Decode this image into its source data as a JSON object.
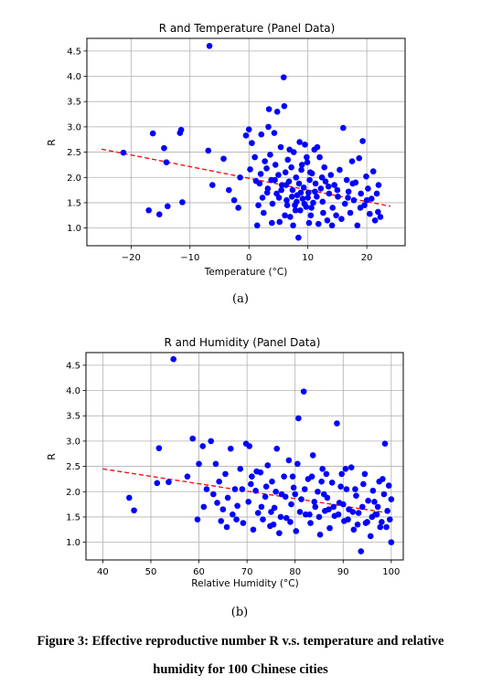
{
  "chart_data": [
    {
      "type": "scatter",
      "title": "R and Temperature (Panel Data)",
      "xlabel": "Temperature (°C)",
      "ylabel": "R",
      "xlim": [
        -27.5,
        26.5
      ],
      "ylim": [
        0.65,
        4.75
      ],
      "xticks": [
        -20,
        -10,
        0,
        10,
        20
      ],
      "yticks": [
        1.0,
        1.5,
        2.0,
        2.5,
        3.0,
        3.5,
        4.0,
        4.5
      ],
      "grid": true,
      "point_color": "#0000ff",
      "trend_color": "#ff0000",
      "trend": {
        "x": [
          -25,
          24
        ],
        "y": [
          2.56,
          1.43
        ]
      },
      "points": [
        [
          -21.3,
          2.49
        ],
        [
          -17.0,
          1.35
        ],
        [
          -16.3,
          2.87
        ],
        [
          -15.2,
          1.27
        ],
        [
          -14.4,
          2.58
        ],
        [
          -14.0,
          2.3
        ],
        [
          -13.8,
          1.43
        ],
        [
          -11.5,
          2.94
        ],
        [
          -11.3,
          1.51
        ],
        [
          -11.7,
          2.88
        ],
        [
          -6.7,
          4.6
        ],
        [
          -6.9,
          2.53
        ],
        [
          -6.2,
          1.85
        ],
        [
          -4.3,
          2.37
        ],
        [
          -3.4,
          1.75
        ],
        [
          -2.5,
          1.55
        ],
        [
          -1.8,
          1.4
        ],
        [
          -1.5,
          2.0
        ],
        [
          -0.5,
          2.83
        ],
        [
          0.0,
          2.95
        ],
        [
          0.2,
          2.16
        ],
        [
          0.5,
          2.68
        ],
        [
          1.0,
          2.4
        ],
        [
          1.2,
          1.93
        ],
        [
          1.6,
          1.45
        ],
        [
          1.8,
          1.88
        ],
        [
          2.0,
          2.07
        ],
        [
          2.3,
          1.6
        ],
        [
          2.5,
          1.3
        ],
        [
          2.7,
          2.32
        ],
        [
          3.0,
          2.18
        ],
        [
          3.2,
          1.78
        ],
        [
          3.4,
          3.35
        ],
        [
          3.6,
          2.45
        ],
        [
          3.8,
          1.95
        ],
        [
          4.0,
          1.48
        ],
        [
          4.3,
          2.88
        ],
        [
          4.5,
          2.25
        ],
        [
          4.7,
          1.68
        ],
        [
          5.0,
          2.05
        ],
        [
          5.2,
          1.12
        ],
        [
          5.4,
          2.6
        ],
        [
          5.6,
          1.85
        ],
        [
          5.9,
          3.98
        ],
        [
          6.0,
          3.41
        ],
        [
          6.2,
          2.1
        ],
        [
          6.4,
          1.55
        ],
        [
          6.6,
          2.35
        ],
        [
          6.8,
          1.92
        ],
        [
          7.0,
          1.22
        ],
        [
          7.2,
          2.2
        ],
        [
          7.4,
          1.75
        ],
        [
          7.6,
          2.5
        ],
        [
          7.8,
          1.45
        ],
        [
          8.0,
          2.0
        ],
        [
          8.2,
          1.65
        ],
        [
          8.4,
          0.81
        ],
        [
          8.5,
          1.88
        ],
        [
          8.7,
          1.35
        ],
        [
          8.9,
          2.15
        ],
        [
          9.1,
          1.58
        ],
        [
          9.3,
          1.8
        ],
        [
          9.5,
          2.65
        ],
        [
          9.7,
          1.42
        ],
        [
          9.9,
          2.3
        ],
        [
          10.1,
          1.7
        ],
        [
          10.3,
          1.95
        ],
        [
          10.5,
          1.25
        ],
        [
          10.7,
          2.08
        ],
        [
          10.9,
          1.5
        ],
        [
          11.1,
          2.55
        ],
        [
          11.3,
          1.88
        ],
        [
          11.5,
          1.62
        ],
        [
          11.8,
          1.08
        ],
        [
          12.0,
          2.4
        ],
        [
          12.2,
          1.78
        ],
        [
          12.5,
          1.52
        ],
        [
          12.8,
          2.2
        ],
        [
          13.0,
          1.92
        ],
        [
          13.3,
          1.15
        ],
        [
          13.6,
          1.68
        ],
        [
          13.9,
          2.05
        ],
        [
          14.2,
          1.4
        ],
        [
          14.5,
          1.85
        ],
        [
          14.8,
          1.25
        ],
        [
          15.1,
          1.62
        ],
        [
          15.4,
          2.15
        ],
        [
          15.7,
          1.18
        ],
        [
          16.0,
          2.98
        ],
        [
          16.3,
          1.48
        ],
        [
          16.6,
          1.95
        ],
        [
          16.9,
          1.72
        ],
        [
          17.2,
          1.3
        ],
        [
          17.5,
          2.32
        ],
        [
          17.8,
          1.55
        ],
        [
          18.1,
          1.9
        ],
        [
          18.4,
          1.05
        ],
        [
          18.7,
          2.38
        ],
        [
          19.0,
          1.68
        ],
        [
          19.3,
          2.72
        ],
        [
          19.6,
          1.45
        ],
        [
          19.9,
          2.02
        ],
        [
          20.2,
          1.78
        ],
        [
          20.5,
          1.28
        ],
        [
          20.8,
          1.58
        ],
        [
          21.1,
          2.12
        ],
        [
          21.4,
          1.15
        ],
        [
          21.7,
          1.68
        ],
        [
          22.0,
          1.85
        ],
        [
          22.3,
          1.22
        ],
        [
          2.1,
          2.85
        ],
        [
          3.3,
          3.0
        ],
        [
          4.8,
          3.3
        ],
        [
          6.9,
          2.55
        ],
        [
          8.6,
          2.7
        ],
        [
          9.8,
          2.4
        ],
        [
          11.6,
          2.6
        ],
        [
          1.4,
          1.05
        ],
        [
          3.9,
          1.1
        ],
        [
          6.1,
          1.25
        ],
        [
          7.5,
          1.05
        ],
        [
          10.2,
          1.1
        ],
        [
          12.6,
          1.3
        ],
        [
          14.1,
          1.05
        ],
        [
          5.5,
          1.75
        ],
        [
          6.5,
          1.45
        ],
        [
          7.3,
          1.62
        ],
        [
          8.1,
          1.52
        ],
        [
          8.8,
          1.7
        ],
        [
          9.4,
          1.48
        ],
        [
          10.0,
          1.6
        ],
        [
          10.6,
          1.4
        ],
        [
          11.2,
          1.72
        ],
        [
          7.9,
          1.35
        ],
        [
          6.3,
          1.85
        ],
        [
          5.1,
          1.6
        ],
        [
          4.4,
          1.95
        ],
        [
          3.1,
          1.7
        ],
        [
          9.0,
          2.25
        ],
        [
          10.4,
          2.1
        ],
        [
          12.4,
          2.0
        ],
        [
          13.5,
          1.82
        ],
        [
          15.0,
          1.75
        ],
        [
          16.8,
          1.6
        ],
        [
          17.6,
          1.88
        ],
        [
          18.9,
          1.4
        ],
        [
          20.0,
          1.55
        ],
        [
          21.9,
          1.32
        ]
      ]
    },
    {
      "type": "scatter",
      "title": "R and Humidity (Panel Data)",
      "xlabel": "Relative Humidity (°C)",
      "ylabel": "R",
      "xlim": [
        36.5,
        102.5
      ],
      "ylim": [
        0.65,
        4.75
      ],
      "xticks": [
        40,
        50,
        60,
        70,
        80,
        90,
        100
      ],
      "yticks": [
        1.0,
        1.5,
        2.0,
        2.5,
        3.0,
        3.5,
        4.0,
        4.5
      ],
      "grid": true,
      "point_color": "#0000ff",
      "trend_color": "#ff0000",
      "trend": {
        "x": [
          40,
          100
        ],
        "y": [
          2.45,
          1.57
        ]
      },
      "points": [
        [
          45.5,
          1.88
        ],
        [
          46.5,
          1.63
        ],
        [
          51.3,
          2.17
        ],
        [
          51.7,
          2.86
        ],
        [
          53.7,
          2.19
        ],
        [
          54.7,
          4.62
        ],
        [
          57.6,
          2.3
        ],
        [
          58.7,
          3.05
        ],
        [
          59.7,
          1.45
        ],
        [
          60.0,
          2.55
        ],
        [
          60.8,
          2.9
        ],
        [
          61.6,
          2.05
        ],
        [
          62.5,
          3.0
        ],
        [
          63.0,
          1.95
        ],
        [
          63.8,
          1.78
        ],
        [
          64.2,
          2.2
        ],
        [
          64.6,
          1.42
        ],
        [
          65.0,
          1.65
        ],
        [
          65.5,
          2.35
        ],
        [
          66.0,
          1.88
        ],
        [
          66.6,
          2.85
        ],
        [
          67.0,
          1.55
        ],
        [
          67.5,
          2.05
        ],
        [
          68.0,
          1.72
        ],
        [
          68.6,
          2.45
        ],
        [
          69.2,
          1.38
        ],
        [
          69.8,
          2.95
        ],
        [
          70.3,
          1.8
        ],
        [
          70.8,
          2.15
        ],
        [
          71.3,
          1.25
        ],
        [
          71.8,
          2.02
        ],
        [
          72.3,
          1.58
        ],
        [
          72.8,
          2.38
        ],
        [
          73.3,
          1.45
        ],
        [
          73.8,
          1.9
        ],
        [
          74.3,
          2.52
        ],
        [
          74.8,
          1.32
        ],
        [
          75.2,
          2.2
        ],
        [
          75.7,
          1.68
        ],
        [
          76.2,
          2.85
        ],
        [
          76.7,
          1.18
        ],
        [
          77.2,
          1.95
        ],
        [
          77.7,
          2.3
        ],
        [
          78.2,
          1.48
        ],
        [
          78.7,
          2.62
        ],
        [
          79.2,
          1.75
        ],
        [
          79.7,
          2.08
        ],
        [
          80.2,
          1.22
        ],
        [
          80.7,
          3.45
        ],
        [
          81.3,
          1.85
        ],
        [
          81.8,
          3.98
        ],
        [
          82.2,
          1.55
        ],
        [
          82.7,
          2.25
        ],
        [
          83.2,
          1.38
        ],
        [
          83.7,
          2.72
        ],
        [
          84.2,
          1.7
        ],
        [
          84.7,
          2.0
        ],
        [
          85.2,
          1.15
        ],
        [
          85.7,
          2.45
        ],
        [
          86.2,
          1.62
        ],
        [
          86.7,
          1.88
        ],
        [
          87.2,
          1.28
        ],
        [
          87.7,
          2.18
        ],
        [
          88.2,
          1.52
        ],
        [
          88.7,
          3.35
        ],
        [
          89.2,
          1.78
        ],
        [
          89.7,
          2.35
        ],
        [
          90.2,
          1.42
        ],
        [
          90.7,
          2.05
        ],
        [
          91.2,
          1.65
        ],
        [
          91.7,
          2.48
        ],
        [
          92.2,
          1.25
        ],
        [
          92.7,
          1.92
        ],
        [
          93.2,
          1.58
        ],
        [
          93.7,
          0.82
        ],
        [
          94.2,
          2.15
        ],
        [
          94.7,
          1.38
        ],
        [
          95.2,
          1.82
        ],
        [
          95.7,
          1.12
        ],
        [
          96.2,
          2.02
        ],
        [
          96.7,
          1.55
        ],
        [
          97.2,
          1.7
        ],
        [
          97.7,
          1.3
        ],
        [
          98.2,
          2.25
        ],
        [
          98.7,
          2.95
        ],
        [
          99.2,
          1.62
        ],
        [
          99.7,
          1.45
        ],
        [
          100.0,
          1.0
        ],
        [
          100.0,
          1.85
        ],
        [
          99.5,
          2.12
        ],
        [
          72.0,
          2.4
        ],
        [
          74.0,
          2.1
        ],
        [
          76.0,
          2.0
        ],
        [
          78.0,
          1.9
        ],
        [
          80.0,
          1.95
        ],
        [
          82.0,
          2.05
        ],
        [
          84.0,
          1.8
        ],
        [
          86.0,
          1.95
        ],
        [
          88.0,
          1.7
        ],
        [
          90.0,
          1.75
        ],
        [
          92.0,
          1.6
        ],
        [
          94.0,
          1.7
        ],
        [
          96.0,
          1.5
        ],
        [
          98.0,
          1.4
        ],
        [
          73.0,
          1.7
        ],
        [
          75.0,
          1.6
        ],
        [
          77.0,
          1.5
        ],
        [
          79.0,
          1.4
        ],
        [
          81.0,
          1.6
        ],
        [
          83.0,
          1.55
        ],
        [
          85.0,
          1.5
        ],
        [
          87.0,
          1.65
        ],
        [
          89.0,
          1.55
        ],
        [
          91.0,
          1.45
        ],
        [
          93.0,
          1.35
        ],
        [
          95.0,
          1.4
        ],
        [
          97.0,
          1.55
        ],
        [
          99.0,
          1.3
        ],
        [
          71.0,
          2.3
        ],
        [
          79.5,
          2.3
        ],
        [
          85.5,
          2.2
        ],
        [
          89.5,
          2.1
        ],
        [
          92.5,
          2.05
        ],
        [
          96.5,
          1.8
        ],
        [
          98.5,
          1.95
        ],
        [
          61.0,
          1.7
        ],
        [
          67.8,
          1.45
        ],
        [
          63.5,
          2.55
        ],
        [
          65.8,
          1.3
        ],
        [
          69.0,
          2.05
        ],
        [
          70.5,
          2.9
        ],
        [
          75.5,
          1.35
        ],
        [
          80.5,
          2.55
        ],
        [
          83.5,
          2.3
        ],
        [
          86.5,
          2.35
        ],
        [
          90.5,
          2.45
        ],
        [
          94.5,
          2.35
        ],
        [
          97.5,
          2.2
        ]
      ]
    }
  ],
  "sublabel_a": "(a)",
  "sublabel_b": "(b)",
  "caption_line1": "Figure 3: Effective reproductive number R v.s. temperature and relative",
  "caption_line2": "humidity for 100 Chinese cities"
}
